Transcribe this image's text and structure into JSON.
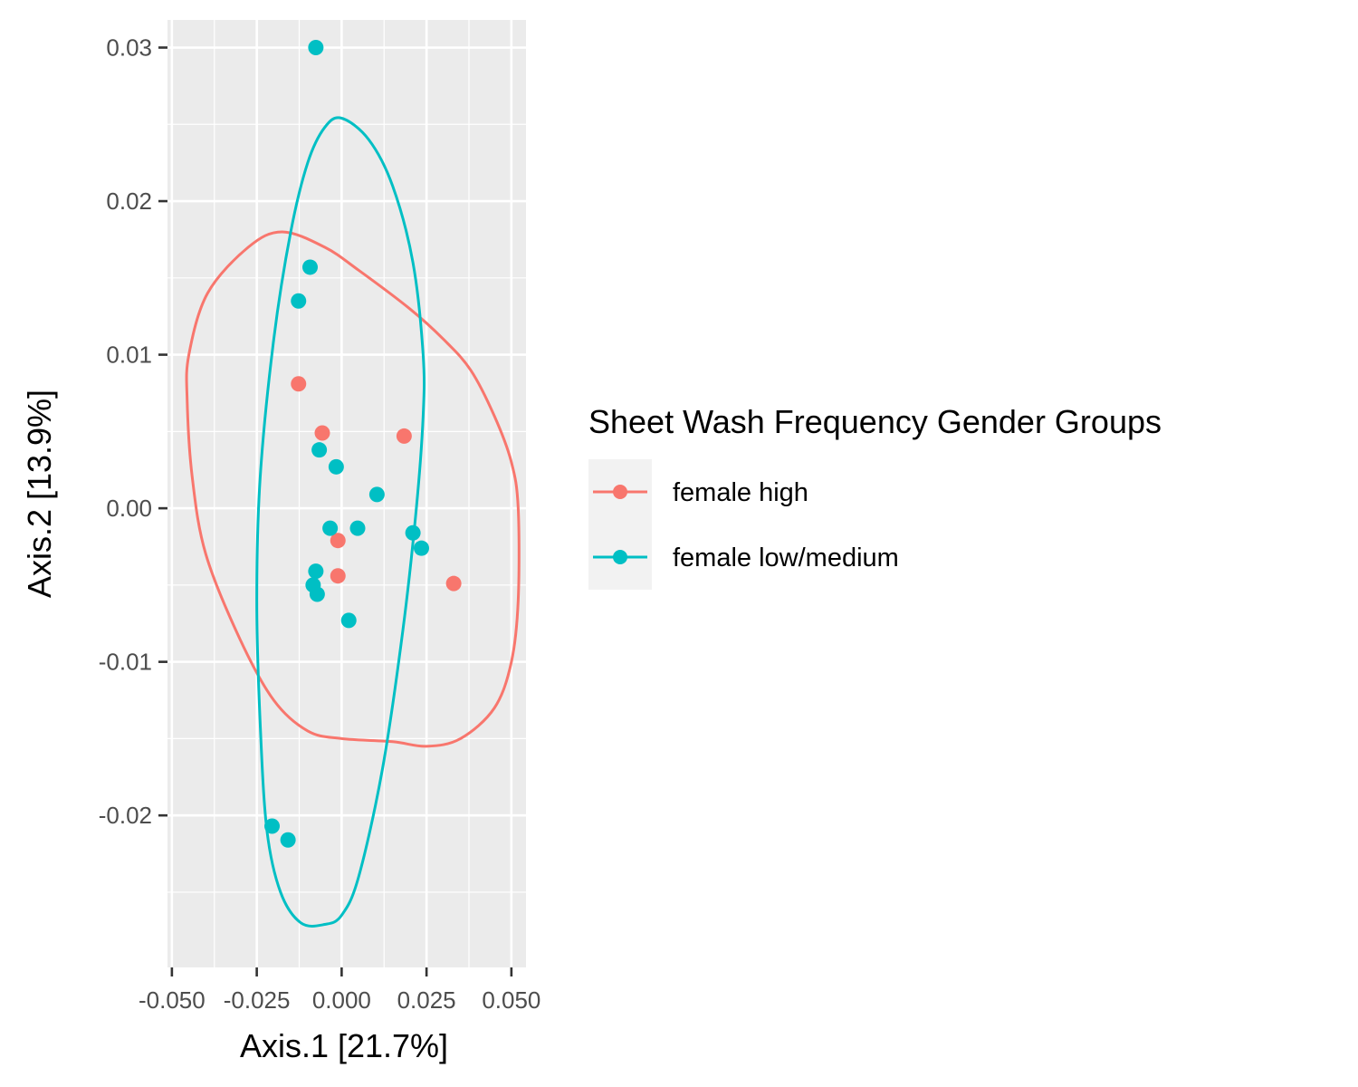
{
  "chart_data": {
    "type": "scatter",
    "xlabel": "Axis.1   [21.7%]",
    "ylabel": "Axis.2   [13.9%]",
    "xlim": [
      -0.0513,
      0.0543
    ],
    "ylim": [
      -0.0299,
      0.0318
    ],
    "x_ticks": [
      -0.05,
      -0.025,
      0.0,
      0.025,
      0.05
    ],
    "x_tick_labels": [
      "-0.050",
      "-0.025",
      "0.000",
      "0.025",
      "0.050"
    ],
    "y_ticks": [
      -0.02,
      -0.01,
      0.0,
      0.01,
      0.02,
      0.03
    ],
    "y_tick_labels": [
      "-0.02",
      "-0.01",
      "0.00",
      "0.01",
      "0.02",
      "0.03"
    ],
    "grid": true,
    "legend_position": "right",
    "legend_title": "Sheet Wash Frequency Gender Groups",
    "series": [
      {
        "name": "female high",
        "color": "#F8766D",
        "points": [
          [
            -0.0127,
            0.0081
          ],
          [
            -0.0057,
            0.0049
          ],
          [
            0.0184,
            0.0047
          ],
          [
            -0.0011,
            -0.0021
          ],
          [
            -0.0011,
            -0.0044
          ],
          [
            0.033,
            -0.0049
          ]
        ],
        "ellipse": [
          [
            -0.0175,
            0.018
          ],
          [
            -0.0275,
            0.017
          ],
          [
            -0.0395,
            0.014
          ],
          [
            -0.045,
            0.01
          ],
          [
            -0.0455,
            0.007
          ],
          [
            -0.044,
            0.002
          ],
          [
            -0.04,
            -0.003
          ],
          [
            -0.03,
            -0.0085
          ],
          [
            -0.02,
            -0.0125
          ],
          [
            -0.01,
            -0.0145
          ],
          [
            0.0,
            -0.015
          ],
          [
            0.015,
            -0.0152
          ],
          [
            0.025,
            -0.0155
          ],
          [
            0.035,
            -0.015
          ],
          [
            0.045,
            -0.013
          ],
          [
            0.05,
            -0.01
          ],
          [
            0.052,
            -0.006
          ],
          [
            0.052,
            0.0
          ],
          [
            0.05,
            0.003
          ],
          [
            0.045,
            0.006
          ],
          [
            0.038,
            0.009
          ],
          [
            0.03,
            0.011
          ],
          [
            0.02,
            0.013
          ],
          [
            0.005,
            0.0155
          ],
          [
            -0.005,
            0.017
          ],
          [
            -0.0175,
            0.018
          ]
        ]
      },
      {
        "name": "female low/medium",
        "color": "#00BFC4",
        "points": [
          [
            -0.0076,
            0.03
          ],
          [
            -0.0093,
            0.0157
          ],
          [
            -0.0127,
            0.0135
          ],
          [
            -0.0066,
            0.0038
          ],
          [
            -0.0016,
            0.0027
          ],
          [
            0.0104,
            0.0009
          ],
          [
            -0.0034,
            -0.0013
          ],
          [
            0.0047,
            -0.0013
          ],
          [
            0.021,
            -0.0016
          ],
          [
            0.0235,
            -0.0026
          ],
          [
            -0.0076,
            -0.0041
          ],
          [
            -0.0084,
            -0.005
          ],
          [
            -0.0072,
            -0.0056
          ],
          [
            0.0021,
            -0.0073
          ],
          [
            -0.0205,
            -0.0207
          ],
          [
            -0.0158,
            -0.0216
          ]
        ],
        "ellipse": [
          [
            0.0,
            0.0254
          ],
          [
            -0.005,
            0.0248
          ],
          [
            -0.01,
            0.0225
          ],
          [
            -0.015,
            0.018
          ],
          [
            -0.02,
            0.011
          ],
          [
            -0.024,
            0.002
          ],
          [
            -0.025,
            -0.006
          ],
          [
            -0.024,
            -0.014
          ],
          [
            -0.022,
            -0.021
          ],
          [
            -0.018,
            -0.025
          ],
          [
            -0.012,
            -0.027
          ],
          [
            -0.005,
            -0.0271
          ],
          [
            0.0,
            -0.0265
          ],
          [
            0.005,
            -0.024
          ],
          [
            0.012,
            -0.017
          ],
          [
            0.018,
            -0.008
          ],
          [
            0.022,
            0.0
          ],
          [
            0.024,
            0.006
          ],
          [
            0.024,
            0.01
          ],
          [
            0.021,
            0.016
          ],
          [
            0.015,
            0.021
          ],
          [
            0.008,
            0.024
          ],
          [
            0.0,
            0.0254
          ]
        ]
      }
    ]
  }
}
